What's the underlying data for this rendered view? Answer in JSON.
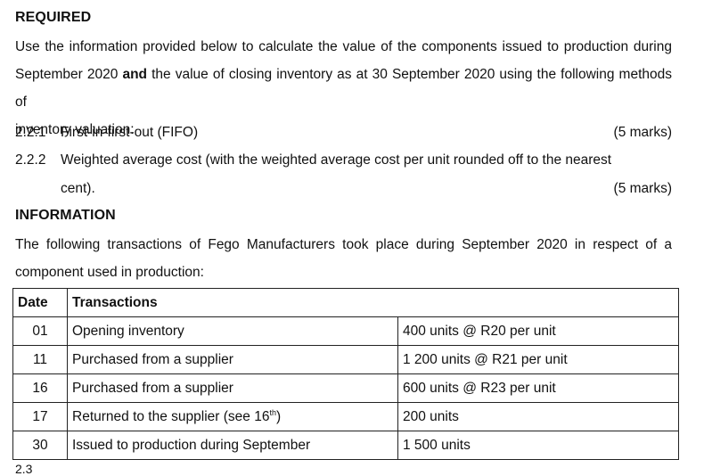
{
  "required": {
    "heading": "REQUIRED",
    "lines": [
      "Use the information provided below to calculate the value of the components issued to production during",
      "inventory valuation:"
    ],
    "line2_before": "September 2020 ",
    "line2_bold": "and",
    "line2_after": " the value of closing inventory as at 30 September 2020 using the following methods of",
    "items": [
      {
        "num": "2.2.1",
        "text": "First-in-first-out (FIFO)",
        "marks": "(5 marks)"
      },
      {
        "num": "2.2.2",
        "text": "Weighted average cost (with the weighted average cost per unit rounded off to the nearest",
        "cont": "cent).",
        "marks": "(5 marks)"
      }
    ]
  },
  "information": {
    "heading": "INFORMATION",
    "lines": [
      "The following transactions of Fego Manufacturers took place during September 2020 in respect of a",
      "component used in production:"
    ]
  },
  "table": {
    "headers": {
      "date": "Date",
      "transactions": "Transactions"
    },
    "rows": [
      {
        "date": "01",
        "desc": "Opening inventory",
        "detail": "400 units @ R20 per unit"
      },
      {
        "date": "11",
        "desc": "Purchased from a supplier",
        "detail": "1 200 units @ R21 per unit"
      },
      {
        "date": "16",
        "desc": "Purchased from a supplier",
        "detail": "600 units @ R23 per unit"
      },
      {
        "date": "17",
        "desc": "Returned to the supplier (see 16",
        "desc_sup": "th",
        "desc_end": ")",
        "detail": "200 units"
      },
      {
        "date": "30",
        "desc": "Issued to production during September",
        "detail": "1 500 units"
      }
    ]
  },
  "footer_fragment": "2.3"
}
